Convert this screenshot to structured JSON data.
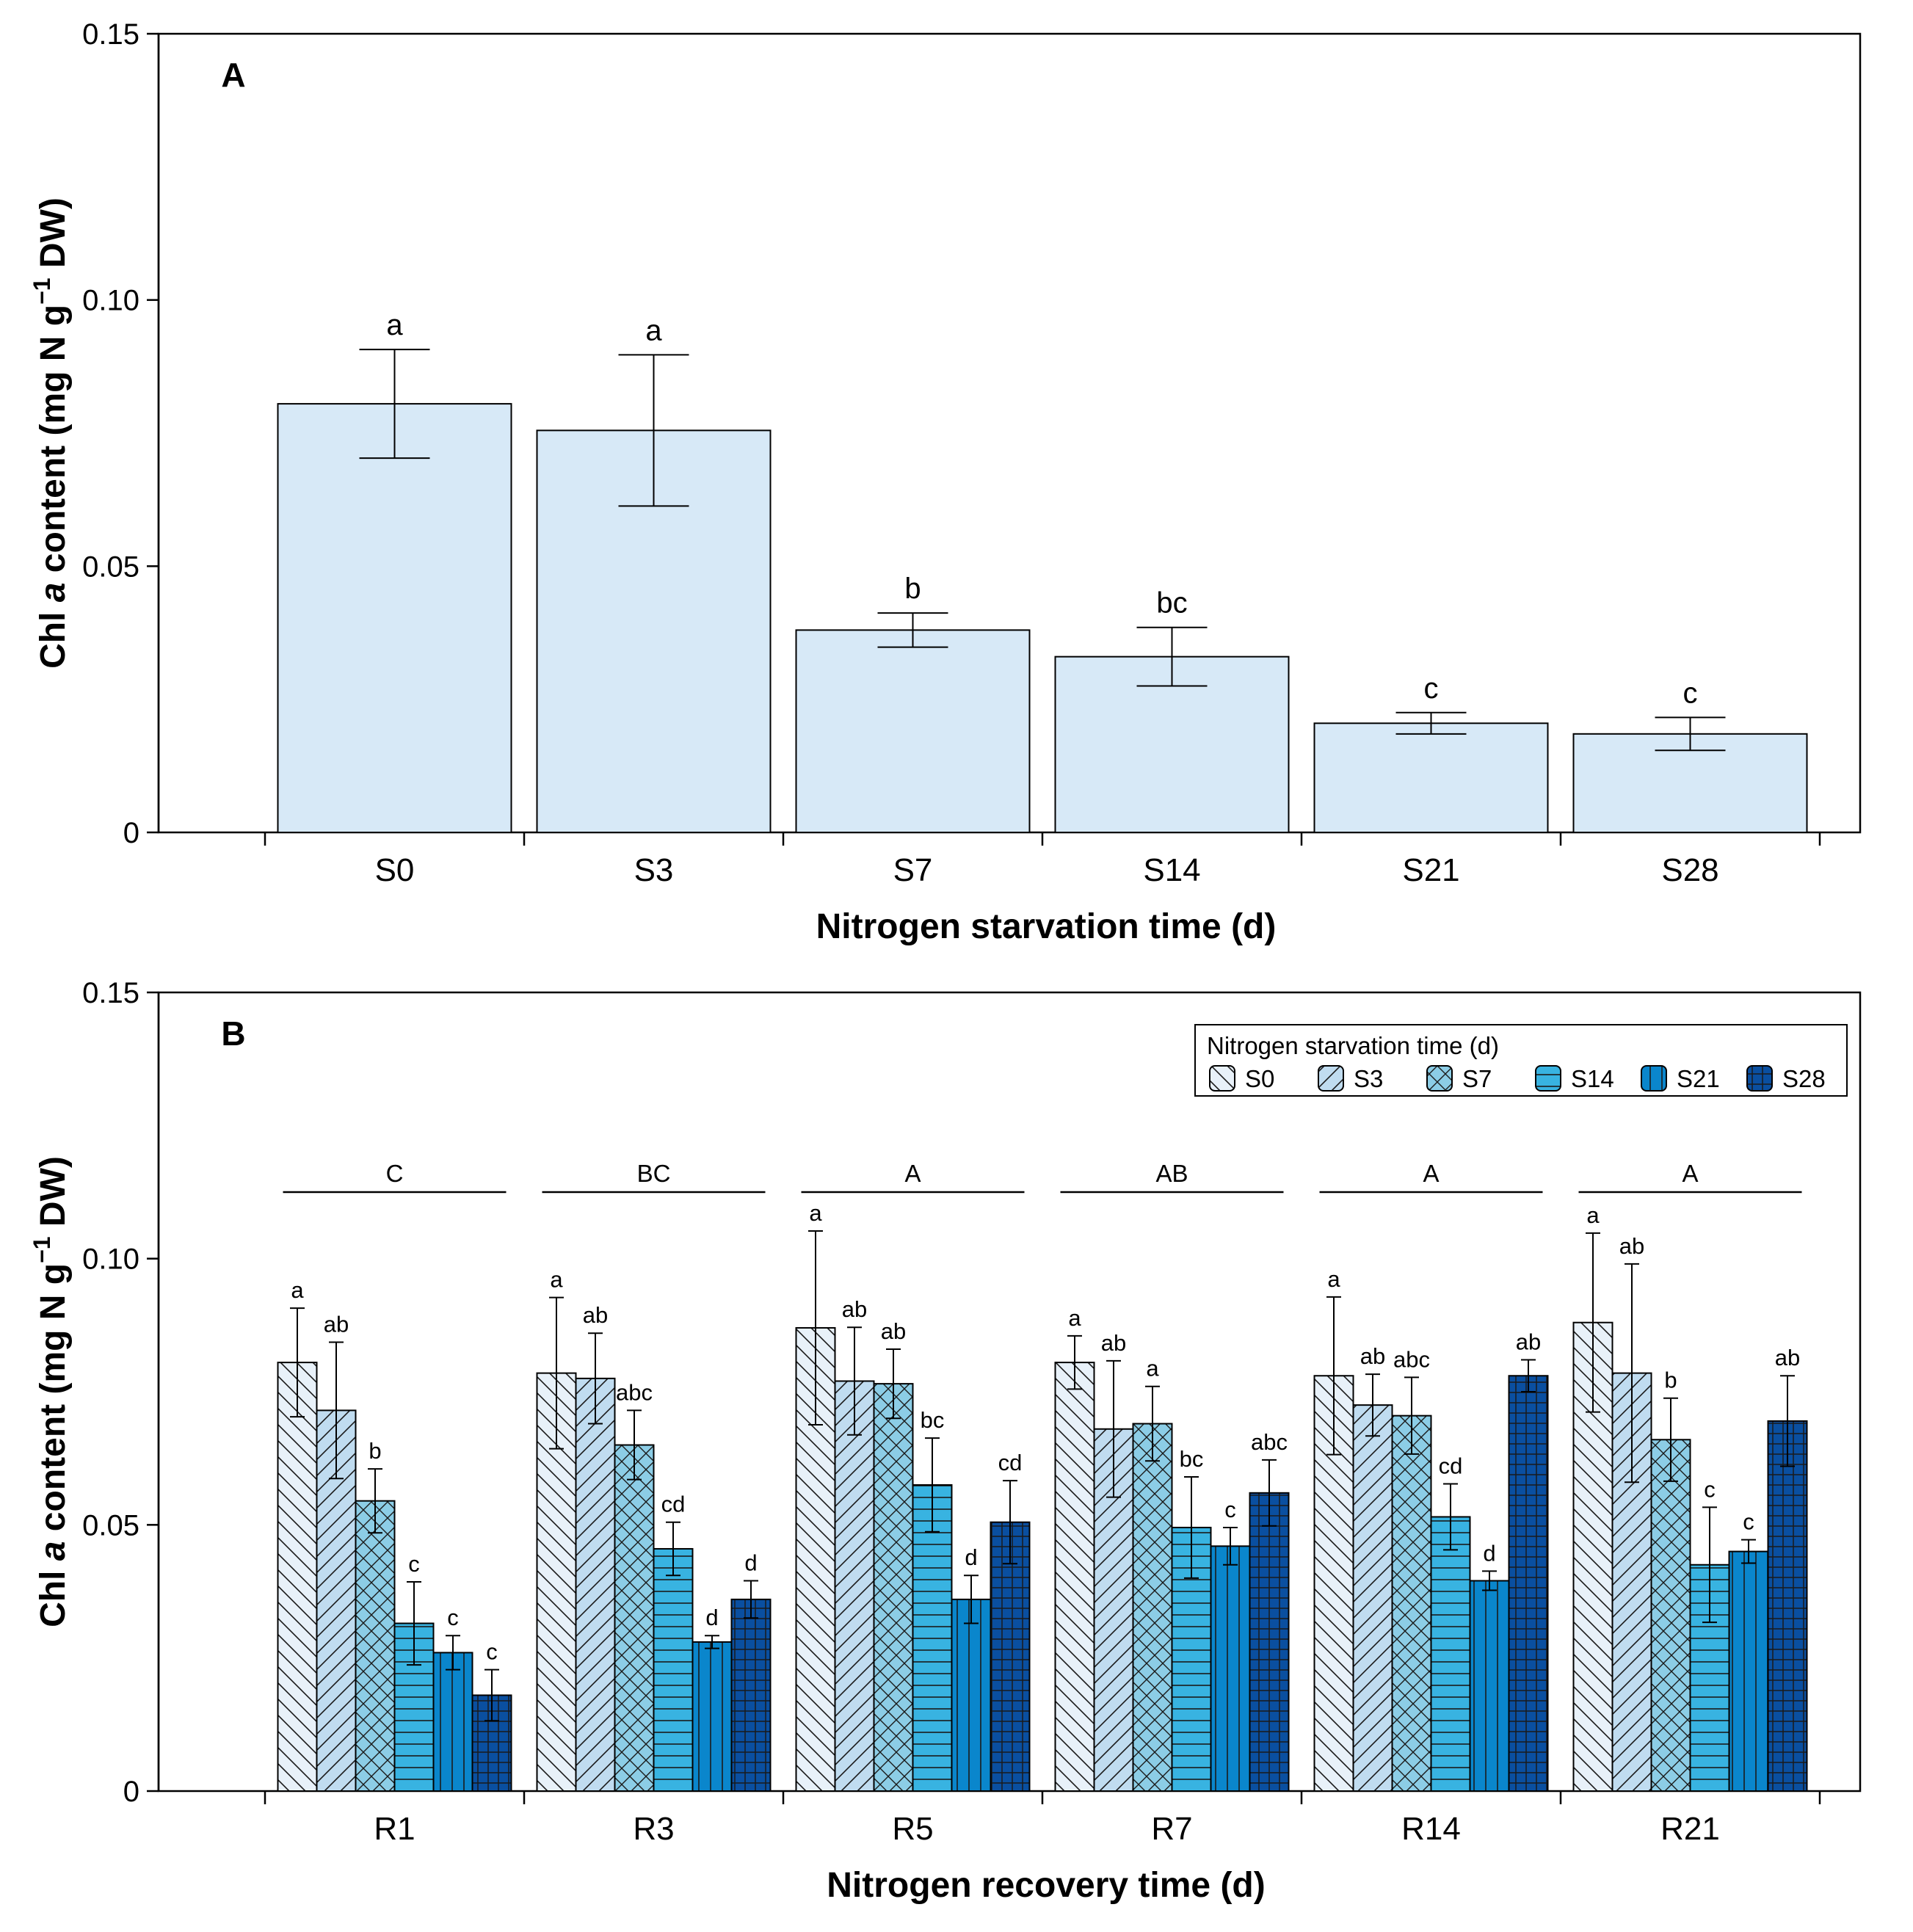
{
  "chart_data": [
    {
      "panel": "A",
      "type": "bar",
      "ylabel": "Chl a content (mg N g−1 DW)",
      "ylabel_parts": {
        "pre": "Chl ",
        "italic": "a",
        "mid": " content (mg N g",
        "sup": "−1",
        "post": " DW)"
      },
      "xlabel": "Nitrogen starvation time (d)",
      "ylim": [
        0,
        0.15
      ],
      "yticks": [
        "0",
        "0.05",
        "0.10",
        "0.15"
      ],
      "categories": [
        "S0",
        "S3",
        "S7",
        "S14",
        "S21",
        "S28"
      ],
      "values": [
        0.0805,
        0.0755,
        0.038,
        0.033,
        0.0205,
        0.0185
      ],
      "errors": [
        0.0102,
        0.0142,
        0.0032,
        0.0055,
        0.002,
        0.0031
      ],
      "letters": [
        "a",
        "a",
        "b",
        "bc",
        "c",
        "c"
      ],
      "color": "#d7e9f7"
    },
    {
      "panel": "B",
      "type": "bar",
      "ylabel": "Chl a content (mg N g−1 DW)",
      "ylabel_parts": {
        "pre": "Chl ",
        "italic": "a",
        "mid": " content (mg N g",
        "sup": "−1",
        "post": " DW)"
      },
      "xlabel": "Nitrogen recovery time (d)",
      "ylim": [
        0,
        0.15
      ],
      "yticks": [
        "0",
        "0.05",
        "0.10",
        "0.15"
      ],
      "categories": [
        "R1",
        "R3",
        "R5",
        "R7",
        "R14",
        "R21"
      ],
      "group_letters": [
        "C",
        "BC",
        "A",
        "AB",
        "A",
        "A"
      ],
      "legend_title": "Nitrogen starvation time (d)",
      "series": [
        {
          "name": "S0",
          "color": "#e8f1f9",
          "pattern": "back-diagonal",
          "values": [
            0.0805,
            0.0785,
            0.087,
            0.0805,
            0.078,
            0.088
          ],
          "errors": [
            0.0102,
            0.0142,
            0.0182,
            0.005,
            0.0148,
            0.0168
          ],
          "letters": [
            "a",
            "a",
            "a",
            "a",
            "a",
            "a"
          ]
        },
        {
          "name": "S3",
          "color": "#c0dcf0",
          "pattern": "forward-diagonal",
          "values": [
            0.0715,
            0.0775,
            0.077,
            0.068,
            0.0725,
            0.0785
          ],
          "errors": [
            0.0128,
            0.0085,
            0.0101,
            0.0128,
            0.0058,
            0.0205
          ],
          "letters": [
            "ab",
            "ab",
            "ab",
            "ab",
            "ab",
            "ab"
          ]
        },
        {
          "name": "S7",
          "color": "#8ccde6",
          "pattern": "crosshatch-diagonal",
          "values": [
            0.0545,
            0.065,
            0.0765,
            0.069,
            0.0705,
            0.066
          ],
          "errors": [
            0.006,
            0.0065,
            0.0065,
            0.007,
            0.0072,
            0.0078
          ],
          "letters": [
            "b",
            "abc",
            "ab",
            "a",
            "abc",
            "b"
          ]
        },
        {
          "name": "S14",
          "color": "#38b3e1",
          "pattern": "horizontal",
          "values": [
            0.0315,
            0.0455,
            0.0575,
            0.0495,
            0.0515,
            0.0425
          ],
          "errors": [
            0.0078,
            0.005,
            0.0088,
            0.0095,
            0.0062,
            0.0108
          ],
          "letters": [
            "c",
            "cd",
            "bc",
            "bc",
            "cd",
            "c"
          ]
        },
        {
          "name": "S21",
          "color": "#0a86cc",
          "pattern": "vertical",
          "values": [
            0.026,
            0.028,
            0.036,
            0.046,
            0.0395,
            0.045
          ],
          "errors": [
            0.0032,
            0.0012,
            0.0045,
            0.0035,
            0.0018,
            0.0022
          ],
          "letters": [
            "c",
            "d",
            "d",
            "c",
            "d",
            "c"
          ]
        },
        {
          "name": "S28",
          "color": "#0a4fa0",
          "pattern": "grid",
          "values": [
            0.018,
            0.036,
            0.0505,
            0.056,
            0.078,
            0.0695
          ],
          "errors": [
            0.0048,
            0.0035,
            0.0078,
            0.0062,
            0.003,
            0.0085
          ],
          "letters": [
            "c",
            "d",
            "cd",
            "abc",
            "ab",
            "ab"
          ]
        }
      ]
    }
  ]
}
